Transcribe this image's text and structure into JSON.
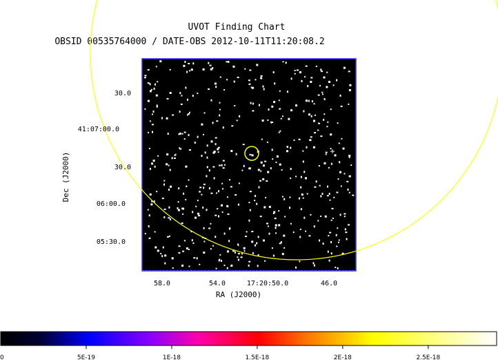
{
  "chart_data": {
    "type": "image",
    "title": "UVOT Finding Chart",
    "subtitle": "OBSID 00535764000 / DATE-OBS 2012-10-11T11:20:08.2",
    "xlabel": "RA (J2000)",
    "ylabel": "Dec (J2000)",
    "x_ticks": [
      "58.0",
      "54.0",
      "17:20:50.0",
      "46.0"
    ],
    "y_ticks": [
      "30.0",
      "41:07:00.0",
      "30.0",
      "06:00.0",
      "05:30.0"
    ],
    "colorbar": {
      "ticks": [
        "0",
        "5E-19",
        "1E-18",
        "1.5E-18",
        "2E-18",
        "2.5E-18"
      ],
      "min": 0,
      "max": 2.9e-18,
      "colormap": [
        "#000000",
        "#0000ff",
        "#ff00ff",
        "#ff0000",
        "#ffff00",
        "#ffffff"
      ]
    },
    "image_background": "#000000",
    "frame_color": "#3333ff",
    "overlay_color": "#ffff00",
    "overlays": [
      "large-error-circle",
      "source-circle"
    ]
  }
}
